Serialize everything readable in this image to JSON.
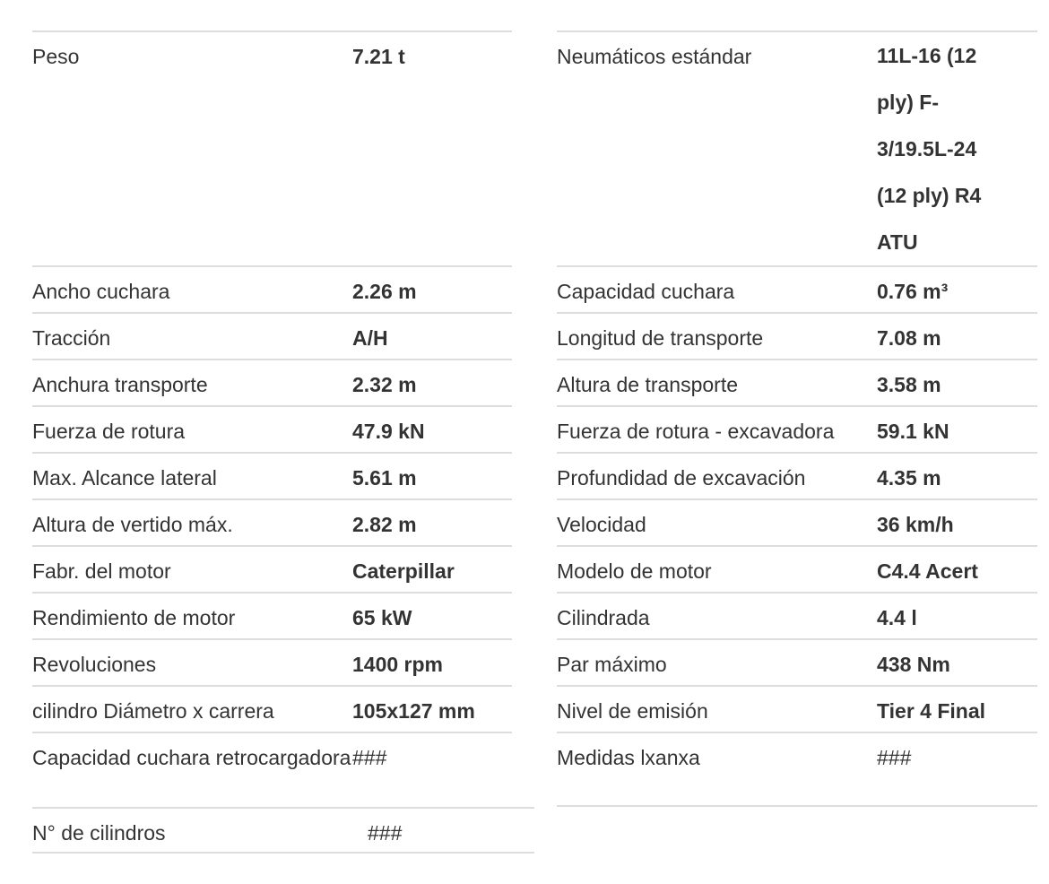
{
  "left": [
    {
      "label": "Peso",
      "value": "7.21 t"
    },
    {
      "label": "Ancho cuchara",
      "value": "2.26 m"
    },
    {
      "label": "Tracción",
      "value": "A/H"
    },
    {
      "label": "Anchura transporte",
      "value": "2.32 m"
    },
    {
      "label": "Fuerza de rotura",
      "value": "47.9 kN"
    },
    {
      "label": "Max. Alcance lateral",
      "value": "5.61 m"
    },
    {
      "label": "Altura de vertido máx.",
      "value": "2.82 m"
    },
    {
      "label": "Fabr. del motor",
      "value": "Caterpillar"
    },
    {
      "label": "Rendimiento de motor",
      "value": "65 kW"
    },
    {
      "label": "Revoluciones",
      "value": "1400 rpm"
    },
    {
      "label": "cilindro Diámetro x carrera",
      "value": "105x127 mm"
    },
    {
      "label": "Capacidad cuchara retrocargadora",
      "value": "###"
    },
    {
      "label": "N° de cilindros",
      "value": "###"
    }
  ],
  "right": [
    {
      "label": "Neumáticos estándar",
      "value": "11L-16 (12 ply) F-3/19.5L-24 (12 ply) R4 ATU"
    },
    {
      "label": "Capacidad cuchara",
      "value": "0.76 m³"
    },
    {
      "label": "Longitud de transporte",
      "value": "7.08 m"
    },
    {
      "label": "Altura de transporte",
      "value": "3.58 m"
    },
    {
      "label": "Fuerza de rotura - excavadora",
      "value": "59.1 kN"
    },
    {
      "label": "Profundidad de excavación",
      "value": "4.35 m"
    },
    {
      "label": "Velocidad",
      "value": "36 km/h"
    },
    {
      "label": "Modelo de motor",
      "value": "C4.4 Acert"
    },
    {
      "label": "Cilindrada",
      "value": "4.4 l"
    },
    {
      "label": "Par máximo",
      "value": "438 Nm"
    },
    {
      "label": "Nivel de emisión",
      "value": "Tier 4 Final"
    },
    {
      "label": "Medidas lxanxa",
      "value": "###"
    }
  ]
}
